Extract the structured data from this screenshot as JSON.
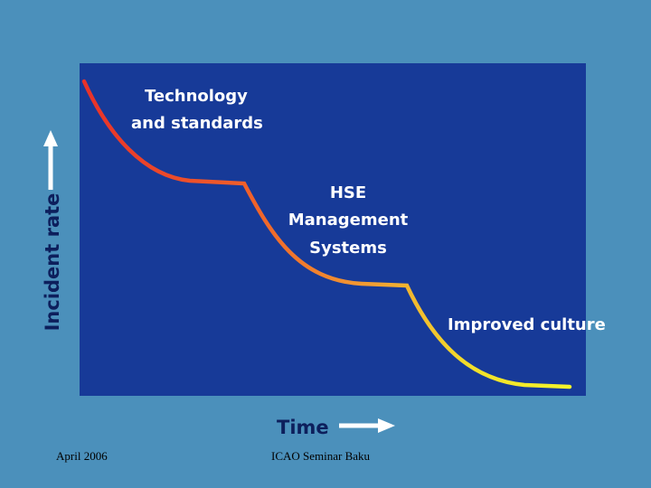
{
  "diagram": {
    "y_axis_label": "Incident rate",
    "x_axis_label": "Time",
    "stages": [
      {
        "lines": [
          "Technology",
          "and standards"
        ]
      },
      {
        "lines": [
          "HSE",
          "Management",
          "Systems"
        ]
      },
      {
        "lines": [
          "Improved culture"
        ]
      }
    ]
  },
  "footer": {
    "left": "April 2006",
    "right": "ICAO Seminar Baku"
  }
}
